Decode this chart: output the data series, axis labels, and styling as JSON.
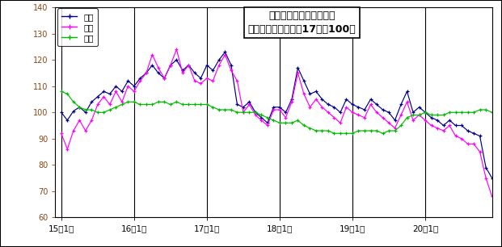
{
  "title_line1": "鳥取県鉱工業指数の推移",
  "title_line2": "（季節調整済、平成17年＝100）",
  "legend_labels": [
    "生産",
    "出荷",
    "在庫"
  ],
  "legend_colors": [
    "#00008B",
    "#FF00FF",
    "#00BB00"
  ],
  "x_tick_labels": [
    "15年1月",
    "16年1月",
    "17年1月",
    "18年1月",
    "19年1月",
    "20年1月"
  ],
  "x_tick_positions": [
    0,
    12,
    24,
    36,
    48,
    60
  ],
  "ylim": [
    60.0,
    140.0
  ],
  "yticks": [
    60.0,
    70.0,
    80.0,
    90.0,
    100.0,
    110.0,
    120.0,
    130.0,
    140.0
  ],
  "ytick_color": "#8B4513",
  "grid_lines_x": [
    0,
    12,
    24,
    36,
    48,
    60
  ],
  "production": [
    100.0,
    97.0,
    100.5,
    102.0,
    100.0,
    104.0,
    106.0,
    108.0,
    107.0,
    110.0,
    108.0,
    112.0,
    110.0,
    113.0,
    115.0,
    118.0,
    115.0,
    113.0,
    118.0,
    120.0,
    116.0,
    118.0,
    115.0,
    113.0,
    118.0,
    116.0,
    120.0,
    123.0,
    118.0,
    103.0,
    102.0,
    104.0,
    100.0,
    98.0,
    96.0,
    102.0,
    102.0,
    100.0,
    105.0,
    117.0,
    112.0,
    107.0,
    108.0,
    105.0,
    103.0,
    102.0,
    100.0,
    105.0,
    103.0,
    102.0,
    101.0,
    105.0,
    103.0,
    101.0,
    100.0,
    97.0,
    103.0,
    108.0,
    100.0,
    102.0,
    100.0,
    98.0,
    97.0,
    95.0,
    97.0,
    95.0,
    95.0,
    93.0,
    92.0,
    91.0,
    79.0,
    75.0
  ],
  "shipment": [
    92.0,
    86.0,
    93.0,
    97.0,
    93.0,
    97.0,
    103.0,
    106.0,
    103.0,
    108.0,
    104.0,
    110.0,
    108.0,
    112.0,
    115.0,
    122.0,
    117.0,
    113.0,
    118.0,
    124.0,
    115.0,
    118.0,
    112.0,
    111.0,
    113.0,
    112.0,
    118.0,
    122.0,
    116.0,
    112.0,
    100.0,
    103.0,
    99.0,
    97.0,
    95.0,
    101.0,
    101.0,
    98.0,
    104.0,
    115.0,
    107.0,
    102.0,
    105.0,
    102.0,
    100.0,
    98.0,
    96.0,
    102.0,
    100.0,
    99.0,
    98.0,
    103.0,
    100.0,
    98.0,
    96.0,
    94.0,
    99.0,
    104.0,
    97.0,
    99.0,
    97.0,
    95.0,
    94.0,
    93.0,
    95.0,
    91.0,
    90.0,
    88.0,
    88.0,
    85.0,
    75.0,
    68.0
  ],
  "inventory": [
    108.0,
    107.0,
    104.0,
    102.0,
    101.0,
    101.0,
    100.0,
    100.0,
    101.0,
    102.0,
    103.0,
    104.0,
    104.0,
    103.0,
    103.0,
    103.0,
    104.0,
    104.0,
    103.0,
    104.0,
    103.0,
    103.0,
    103.0,
    103.0,
    103.0,
    102.0,
    101.0,
    101.0,
    101.0,
    100.0,
    100.0,
    100.0,
    100.0,
    99.0,
    98.0,
    97.0,
    96.0,
    96.0,
    96.0,
    97.0,
    95.0,
    94.0,
    93.0,
    93.0,
    93.0,
    92.0,
    92.0,
    92.0,
    92.0,
    93.0,
    93.0,
    93.0,
    93.0,
    92.0,
    93.0,
    93.0,
    95.0,
    98.0,
    99.0,
    99.0,
    100.0,
    99.0,
    99.0,
    99.0,
    100.0,
    100.0,
    100.0,
    100.0,
    100.0,
    101.0,
    101.0,
    100.0
  ]
}
